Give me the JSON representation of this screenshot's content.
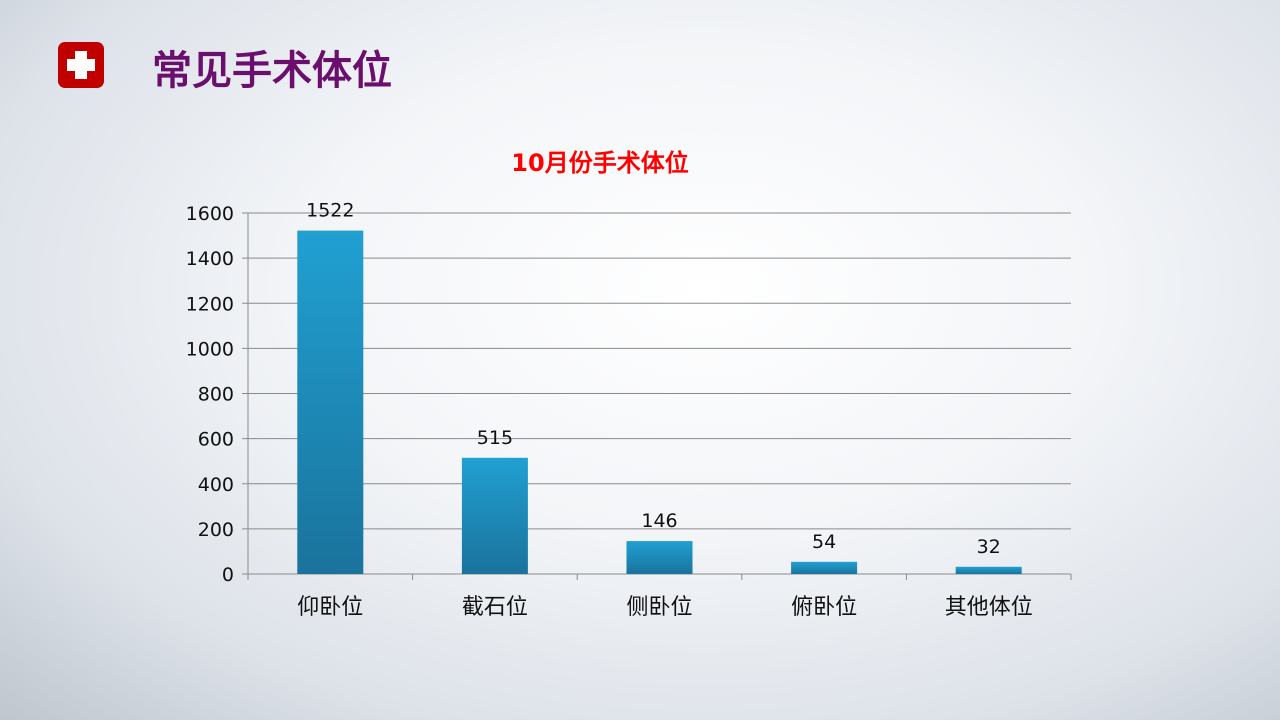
{
  "slide": {
    "title": "常见手术体位",
    "icon": "medical-cross-icon"
  },
  "chart_data": {
    "type": "bar",
    "title": "10月份手术体位",
    "categories": [
      "仰卧位",
      "截石位",
      "侧卧位",
      "俯卧位",
      "其他体位"
    ],
    "values": [
      1522,
      515,
      146,
      54,
      32
    ],
    "ylim": [
      0,
      1600
    ],
    "yticks": [
      0,
      200,
      400,
      600,
      800,
      1000,
      1200,
      1400,
      1600
    ],
    "grid": true,
    "data_labels": true,
    "colors": {
      "bar": "#1f9acb",
      "title": "#ff0000"
    }
  }
}
